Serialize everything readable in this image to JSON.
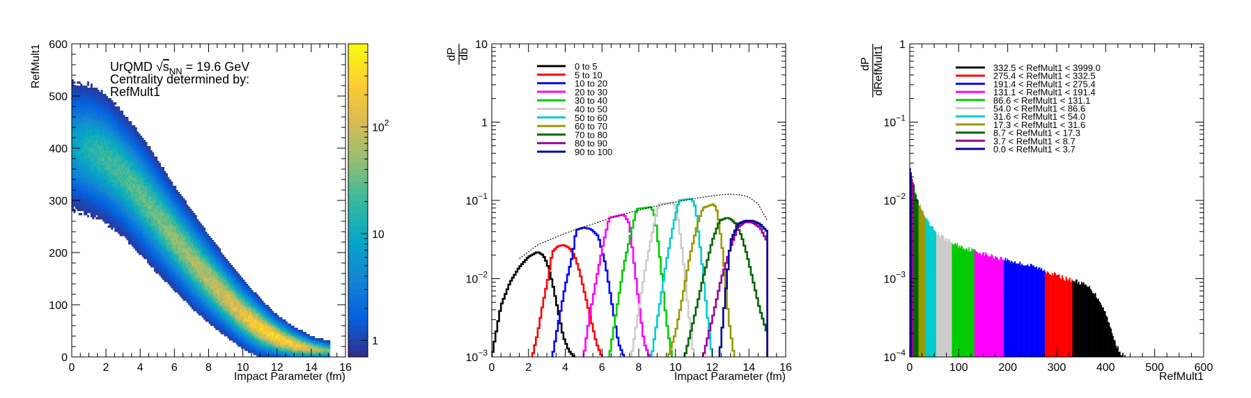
{
  "chart_data": [
    {
      "type": "heatmap",
      "xlabel": "Impact Parameter (fm)",
      "ylabel": "RefMult1",
      "xlim": [
        0,
        16
      ],
      "ylim": [
        0,
        600
      ],
      "x_ticks": [
        0,
        2,
        4,
        6,
        8,
        10,
        12,
        14,
        16
      ],
      "y_ticks": [
        0,
        100,
        200,
        300,
        400,
        500,
        600
      ],
      "annotation": {
        "line1_prefix": "UrQMD ",
        "sqrt_symbol": "√",
        "s_letter": "s",
        "subscript": "NN",
        "line1_suffix": " = 19.6 GeV",
        "line2": "Centrality determined by:",
        "line3": "RefMult1"
      },
      "band": {
        "b": [
          0,
          1,
          2,
          3,
          4,
          5,
          6,
          7,
          8,
          9,
          10,
          11,
          12,
          13,
          14,
          15
        ],
        "mean": [
          405,
          398,
          380,
          350,
          312,
          270,
          228,
          188,
          150,
          115,
          82,
          56,
          37,
          24,
          16,
          12
        ],
        "width": [
          55,
          55,
          54,
          52,
          50,
          47,
          43,
          40,
          36,
          32,
          28,
          24,
          18,
          14,
          10,
          8
        ],
        "density": [
          0.35,
          0.45,
          0.5,
          0.52,
          0.55,
          0.58,
          0.62,
          0.66,
          0.7,
          0.75,
          0.8,
          0.88,
          0.9,
          0.85,
          0.75,
          0.6
        ]
      },
      "colorbar": {
        "scale": "log",
        "range": [
          0.7,
          600
        ],
        "ticks": [
          {
            "value": 1,
            "label": "1"
          },
          {
            "value": 10,
            "label": "10"
          }
        ],
        "exp_tick": {
          "value": 100,
          "base": "10",
          "exp": "2"
        },
        "palette": [
          "#352a87",
          "#0363e1",
          "#1485d4",
          "#06a7c6",
          "#38b99e",
          "#92bf73",
          "#d9ba56",
          "#fcce2e",
          "#f9fb0e"
        ]
      }
    },
    {
      "type": "line",
      "ylabel_num": "dP",
      "ylabel_den": "db",
      "xlabel": "Impact Parameter (fm)",
      "xlim": [
        0,
        16
      ],
      "ylim": [
        0.001,
        10
      ],
      "yscale": "log",
      "x_ticks": [
        0,
        2,
        4,
        6,
        8,
        10,
        12,
        14,
        16
      ],
      "y_ticks": [
        {
          "value": 10,
          "label": "10"
        },
        {
          "value": 1,
          "label": "1"
        },
        {
          "value": 0.1,
          "base": "10",
          "exp": "−1"
        },
        {
          "value": 0.01,
          "base": "10",
          "exp": "−2"
        },
        {
          "value": 0.001,
          "base": "10",
          "exp": "−3"
        }
      ],
      "legend_position": "top-left",
      "series": [
        {
          "name": "0 to 5",
          "color": "#000000",
          "x": [
            0.0,
            0.5,
            1.0,
            1.5,
            2.0,
            2.5,
            2.8,
            3.0,
            3.3,
            3.6,
            3.9,
            4.2,
            4.5
          ],
          "y": [
            0.001,
            0.0045,
            0.009,
            0.014,
            0.019,
            0.022,
            0.02,
            0.016,
            0.009,
            0.004,
            0.0018,
            0.0012,
            0.001
          ]
        },
        {
          "name": "5 to 10",
          "color": "#ff0000",
          "x": [
            2.2,
            2.5,
            2.8,
            3.1,
            3.3,
            3.6,
            3.9,
            4.2,
            4.5,
            4.8,
            5.1,
            5.4,
            5.7,
            6.0
          ],
          "y": [
            0.001,
            0.002,
            0.005,
            0.011,
            0.022,
            0.026,
            0.027,
            0.025,
            0.02,
            0.012,
            0.006,
            0.003,
            0.0015,
            0.001
          ]
        },
        {
          "name": "10 to 20",
          "color": "#0000ff",
          "x": [
            3.3,
            3.6,
            4.0,
            4.4,
            4.6,
            5.0,
            5.4,
            5.8,
            6.2,
            6.6,
            6.9,
            7.2
          ],
          "y": [
            0.001,
            0.0025,
            0.008,
            0.02,
            0.042,
            0.045,
            0.043,
            0.035,
            0.015,
            0.004,
            0.0015,
            0.001
          ]
        },
        {
          "name": "20 to 30",
          "color": "#ff00ff",
          "x": [
            5.0,
            5.3,
            5.7,
            6.1,
            6.4,
            6.8,
            7.2,
            7.5,
            7.7,
            8.0,
            8.3,
            8.6
          ],
          "y": [
            0.001,
            0.003,
            0.01,
            0.03,
            0.06,
            0.063,
            0.066,
            0.05,
            0.02,
            0.005,
            0.0015,
            0.001
          ]
        },
        {
          "name": "30 to 40",
          "color": "#00cc00",
          "x": [
            6.4,
            6.8,
            7.2,
            7.6,
            7.9,
            8.3,
            8.7,
            8.9,
            9.2,
            9.5,
            9.8
          ],
          "y": [
            0.001,
            0.004,
            0.015,
            0.04,
            0.078,
            0.08,
            0.082,
            0.06,
            0.015,
            0.003,
            0.001
          ]
        },
        {
          "name": "40 to 50",
          "color": "#cccccc",
          "x": [
            7.6,
            8.0,
            8.4,
            8.8,
            9.1,
            9.5,
            9.9,
            10.1,
            10.4,
            10.7,
            11.0
          ],
          "y": [
            0.001,
            0.004,
            0.015,
            0.045,
            0.09,
            0.092,
            0.094,
            0.07,
            0.02,
            0.004,
            0.001
          ]
        },
        {
          "name": "50 to 60",
          "color": "#00cccc",
          "x": [
            8.7,
            9.1,
            9.5,
            9.9,
            10.2,
            10.6,
            10.9,
            11.1,
            11.4,
            11.7,
            12.0
          ],
          "y": [
            0.001,
            0.004,
            0.016,
            0.05,
            0.1,
            0.103,
            0.105,
            0.08,
            0.02,
            0.004,
            0.001
          ]
        },
        {
          "name": "60 to 70",
          "color": "#999900",
          "x": [
            9.6,
            10.0,
            10.4,
            10.8,
            11.2,
            11.5,
            11.8,
            12.1,
            12.3,
            12.6,
            12.9,
            13.2
          ],
          "y": [
            0.001,
            0.002,
            0.006,
            0.02,
            0.05,
            0.08,
            0.085,
            0.09,
            0.07,
            0.02,
            0.003,
            0.001
          ]
        },
        {
          "name": "70 to 80",
          "color": "#006600",
          "x": [
            10.5,
            11.0,
            11.5,
            12.0,
            12.4,
            12.8,
            13.0,
            13.3,
            13.6,
            13.9,
            14.2,
            14.6,
            15.0
          ],
          "y": [
            0.001,
            0.003,
            0.01,
            0.03,
            0.055,
            0.06,
            0.058,
            0.05,
            0.035,
            0.02,
            0.01,
            0.004,
            0.002
          ]
        },
        {
          "name": "80 to 90",
          "color": "#990099",
          "x": [
            11.5,
            12.0,
            12.5,
            13.0,
            13.4,
            13.8,
            14.2,
            14.6,
            15.0
          ],
          "y": [
            0.001,
            0.003,
            0.01,
            0.025,
            0.045,
            0.053,
            0.052,
            0.045,
            0.03
          ]
        },
        {
          "name": "90 to 100",
          "color": "#000099",
          "x": [
            12.4,
            12.8,
            13.0,
            13.4,
            13.8,
            14.2,
            14.6,
            15.0
          ],
          "y": [
            0.001,
            0.01,
            0.03,
            0.05,
            0.055,
            0.055,
            0.05,
            0.04
          ]
        }
      ],
      "envelope": {
        "color": "#000000",
        "x": [
          1.5,
          2.5,
          3.5,
          4.5,
          5.5,
          6.5,
          7.5,
          8.5,
          9.5,
          10.5,
          11.5,
          12.5,
          13.0,
          13.5,
          14.0,
          14.5,
          15.0
        ],
        "y": [
          0.018,
          0.027,
          0.034,
          0.042,
          0.05,
          0.06,
          0.07,
          0.08,
          0.09,
          0.1,
          0.11,
          0.118,
          0.12,
          0.118,
          0.11,
          0.09,
          0.055
        ]
      }
    },
    {
      "type": "bar",
      "ylabel_num": "dP",
      "ylabel_den": "dRefMult1",
      "xlabel": "RefMult1",
      "xlim": [
        0,
        600
      ],
      "ylim": [
        0.0001,
        1
      ],
      "yscale": "log",
      "x_ticks": [
        0,
        100,
        200,
        300,
        400,
        500,
        600
      ],
      "y_ticks": [
        {
          "value": 1,
          "label": "1"
        },
        {
          "value": 0.1,
          "base": "10",
          "exp": "−1"
        },
        {
          "value": 0.01,
          "base": "10",
          "exp": "−2"
        },
        {
          "value": 0.001,
          "base": "10",
          "exp": "−3"
        },
        {
          "value": 0.0001,
          "base": "10",
          "exp": "−4"
        }
      ],
      "legend_position": "top-left",
      "classes": [
        {
          "name": "332.5 < RefMult1 < 3999.0",
          "color": "#000000",
          "lo": 332.5,
          "hi": 3999.0
        },
        {
          "name": "275.4 < RefMult1 < 332.5",
          "color": "#ff0000",
          "lo": 275.4,
          "hi": 332.5
        },
        {
          "name": "191.4 < RefMult1 < 275.4",
          "color": "#0000ff",
          "lo": 191.4,
          "hi": 275.4
        },
        {
          "name": "131.1 < RefMult1 < 191.4",
          "color": "#ff00ff",
          "lo": 131.1,
          "hi": 191.4
        },
        {
          "name": "86.6 < RefMult1 < 131.1",
          "color": "#00cc00",
          "lo": 86.6,
          "hi": 131.1
        },
        {
          "name": "54.0 < RefMult1 < 86.6",
          "color": "#cccccc",
          "lo": 54.0,
          "hi": 86.6
        },
        {
          "name": "31.6 < RefMult1 < 54.0",
          "color": "#00cccc",
          "lo": 31.6,
          "hi": 54.0
        },
        {
          "name": "17.3 < RefMult1 < 31.6",
          "color": "#999900",
          "lo": 17.3,
          "hi": 31.6
        },
        {
          "name": "8.7 < RefMult1 < 17.3",
          "color": "#006600",
          "lo": 8.7,
          "hi": 17.3
        },
        {
          "name": "3.7 < RefMult1 < 8.7",
          "color": "#990099",
          "lo": 3.7,
          "hi": 8.7
        },
        {
          "name": "0.0 < RefMult1 < 3.7",
          "color": "#000099",
          "lo": 0.0,
          "hi": 3.7
        }
      ],
      "distribution": {
        "x": [
          0,
          2,
          5,
          10,
          15,
          20,
          30,
          40,
          55,
          70,
          90,
          110,
          130,
          160,
          190,
          220,
          250,
          280,
          300,
          320,
          335,
          350,
          370,
          390,
          405,
          415,
          425,
          432,
          440
        ],
        "y": [
          0.03,
          0.026,
          0.02,
          0.014,
          0.0105,
          0.0085,
          0.0063,
          0.0049,
          0.0039,
          0.0033,
          0.0028,
          0.0025,
          0.0023,
          0.002,
          0.0018,
          0.0016,
          0.00145,
          0.00125,
          0.0011,
          0.001,
          0.00095,
          0.00088,
          0.00075,
          0.0005,
          0.0003,
          0.00018,
          0.00013,
          0.00011,
          0.0001
        ]
      }
    }
  ]
}
